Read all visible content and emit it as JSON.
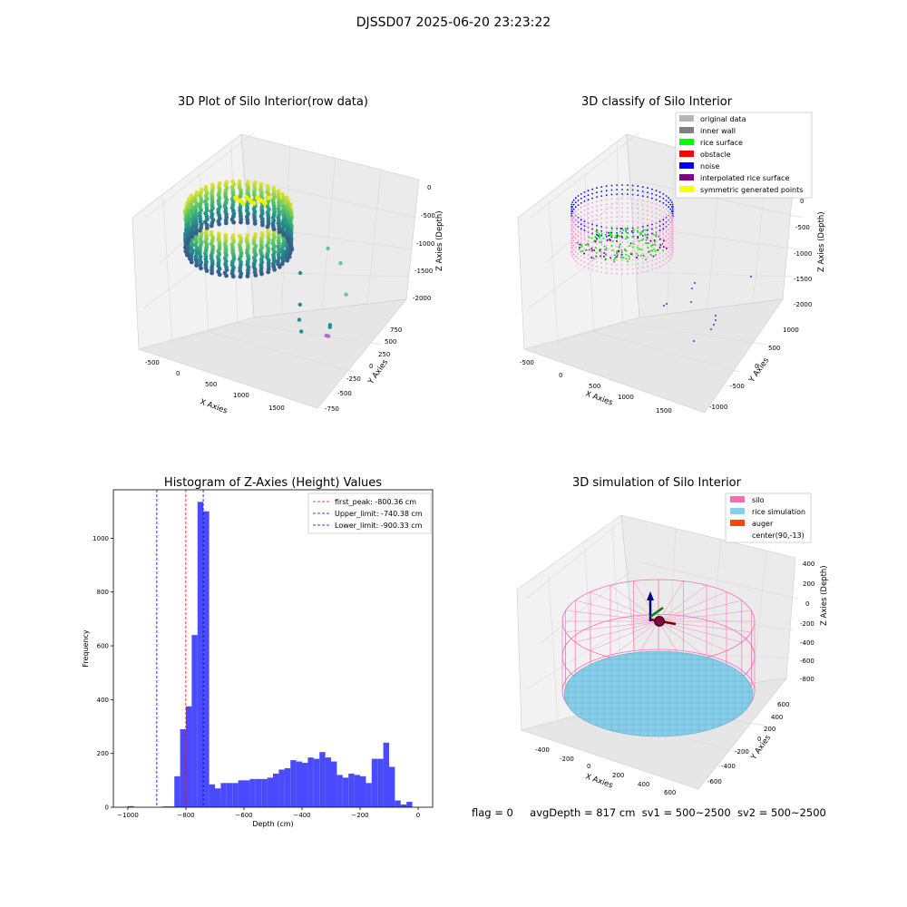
{
  "figure": {
    "suptitle": "DJSSD07 2025-06-20 23:23:22",
    "footer": {
      "flag": "flag = 0",
      "avg_depth": "avgDepth = 817 cm",
      "sv1": "sv1 = 500~2500",
      "sv2": "sv2 = 500~2500"
    }
  },
  "colors": {
    "grid": "#dcdcdc",
    "pane": "#f2f2f2",
    "hist_bar": "#4a4aff",
    "peak_line": "#ff0000",
    "limit_line": "#0000cc",
    "silo": "#ff69b4",
    "rice": "#87ceeb",
    "auger": "#ff4500"
  },
  "chart_data": [
    {
      "type": "scatter3d",
      "title": "3D Plot of Silo Interior(row data)",
      "xlabel": "X Axies",
      "ylabel": "Y Axies",
      "zlabel": "Z Axies (Depth)",
      "xticks": [
        "-500",
        "0",
        "500",
        "1000",
        "1500"
      ],
      "yticks": [
        "-750",
        "-500",
        "-250",
        "0",
        "250",
        "500",
        "750"
      ],
      "zticks": [
        "0",
        "-500",
        "-1000",
        "-1500",
        "-2000"
      ],
      "colormap": "viridis",
      "stray_points": [
        [
          1150,
          20,
          -1150
        ],
        [
          800,
          0,
          -600
        ],
        [
          860,
          120,
          -700
        ],
        [
          330,
          250,
          -1500
        ],
        [
          360,
          260,
          -1500
        ],
        [
          620,
          130,
          -1450
        ],
        [
          600,
          140,
          -1470
        ],
        [
          1250,
          -600,
          -1300
        ],
        [
          1280,
          -620,
          -1700
        ],
        [
          1300,
          -640,
          -1900
        ],
        [
          1100,
          -500,
          -1950
        ]
      ]
    },
    {
      "type": "scatter3d",
      "title": "3D classify of Silo Interior",
      "xlabel": "X Axies",
      "ylabel": "Y Axies",
      "zlabel": "Z Axies (Depth)",
      "xticks": [
        "-500",
        "0",
        "500",
        "1000",
        "1500"
      ],
      "yticks": [
        "-1000",
        "-500",
        "0",
        "500",
        "1000"
      ],
      "zticks": [
        "0",
        "-500",
        "-1000",
        "-1500",
        "-2000"
      ],
      "legend": [
        {
          "label": "original data",
          "color": "#b4b4b4"
        },
        {
          "label": "inner wall",
          "color": "#808080"
        },
        {
          "label": "rice surface",
          "color": "#00ff00"
        },
        {
          "label": "obstacle",
          "color": "#ff0000"
        },
        {
          "label": "noise",
          "color": "#0000ff"
        },
        {
          "label": "interpolated rice surface",
          "color": "#800080"
        },
        {
          "label": "symmetric generated points",
          "color": "#ffff00"
        }
      ]
    },
    {
      "type": "bar",
      "title": "Histogram of Z-Axies (Height) Values",
      "xlabel": "Depth (cm)",
      "ylabel": "Frequency",
      "xlim": [
        -1050,
        50
      ],
      "ylim": [
        0,
        1180
      ],
      "xticks": [
        -1000,
        -800,
        -600,
        -400,
        -200,
        0
      ],
      "xtick_labels": [
        "−1000",
        "−800",
        "−600",
        "−400",
        "−200",
        "0"
      ],
      "yticks": [
        0,
        200,
        400,
        600,
        800,
        1000
      ],
      "bin_start": -1000,
      "bin_width": 20,
      "values": [
        4,
        0,
        0,
        0,
        0,
        0,
        3,
        3,
        115,
        290,
        375,
        640,
        1135,
        1100,
        85,
        70,
        90,
        90,
        90,
        100,
        100,
        105,
        105,
        105,
        110,
        125,
        140,
        145,
        175,
        170,
        165,
        185,
        180,
        205,
        185,
        170,
        120,
        110,
        125,
        120,
        115,
        90,
        180,
        180,
        240,
        150,
        25,
        10,
        20
      ],
      "vlines": [
        {
          "x": -800.36,
          "label": "first_peak: -800.36 cm",
          "color": "#ff0000"
        },
        {
          "x": -740.38,
          "label": "Upper_limit: -740.38 cm",
          "color": "#0000cc"
        },
        {
          "x": -900.33,
          "label": "Lower_limit: -900.33 cm",
          "color": "#0000cc"
        }
      ]
    },
    {
      "type": "surface3d",
      "title": "3D simulation of Silo Interior",
      "xlabel": "X Axies",
      "ylabel": "Y Axies",
      "zlabel": "Z Axies (Depth)",
      "xticks": [
        "-400",
        "-200",
        "0",
        "200",
        "400",
        "600"
      ],
      "yticks": [
        "-600",
        "-400",
        "-200",
        "0",
        "200",
        "400",
        "600"
      ],
      "zticks": [
        "400",
        "200",
        "0",
        "-200",
        "-400",
        "-600",
        "-800"
      ],
      "legend": [
        {
          "label": "silo",
          "color": "#ff69b4"
        },
        {
          "label": "rice simulation",
          "color": "#87ceeb"
        },
        {
          "label": "auger",
          "color": "#ff4500"
        },
        {
          "label": "center(90,-13)",
          "color": "#ffffff"
        }
      ]
    }
  ]
}
